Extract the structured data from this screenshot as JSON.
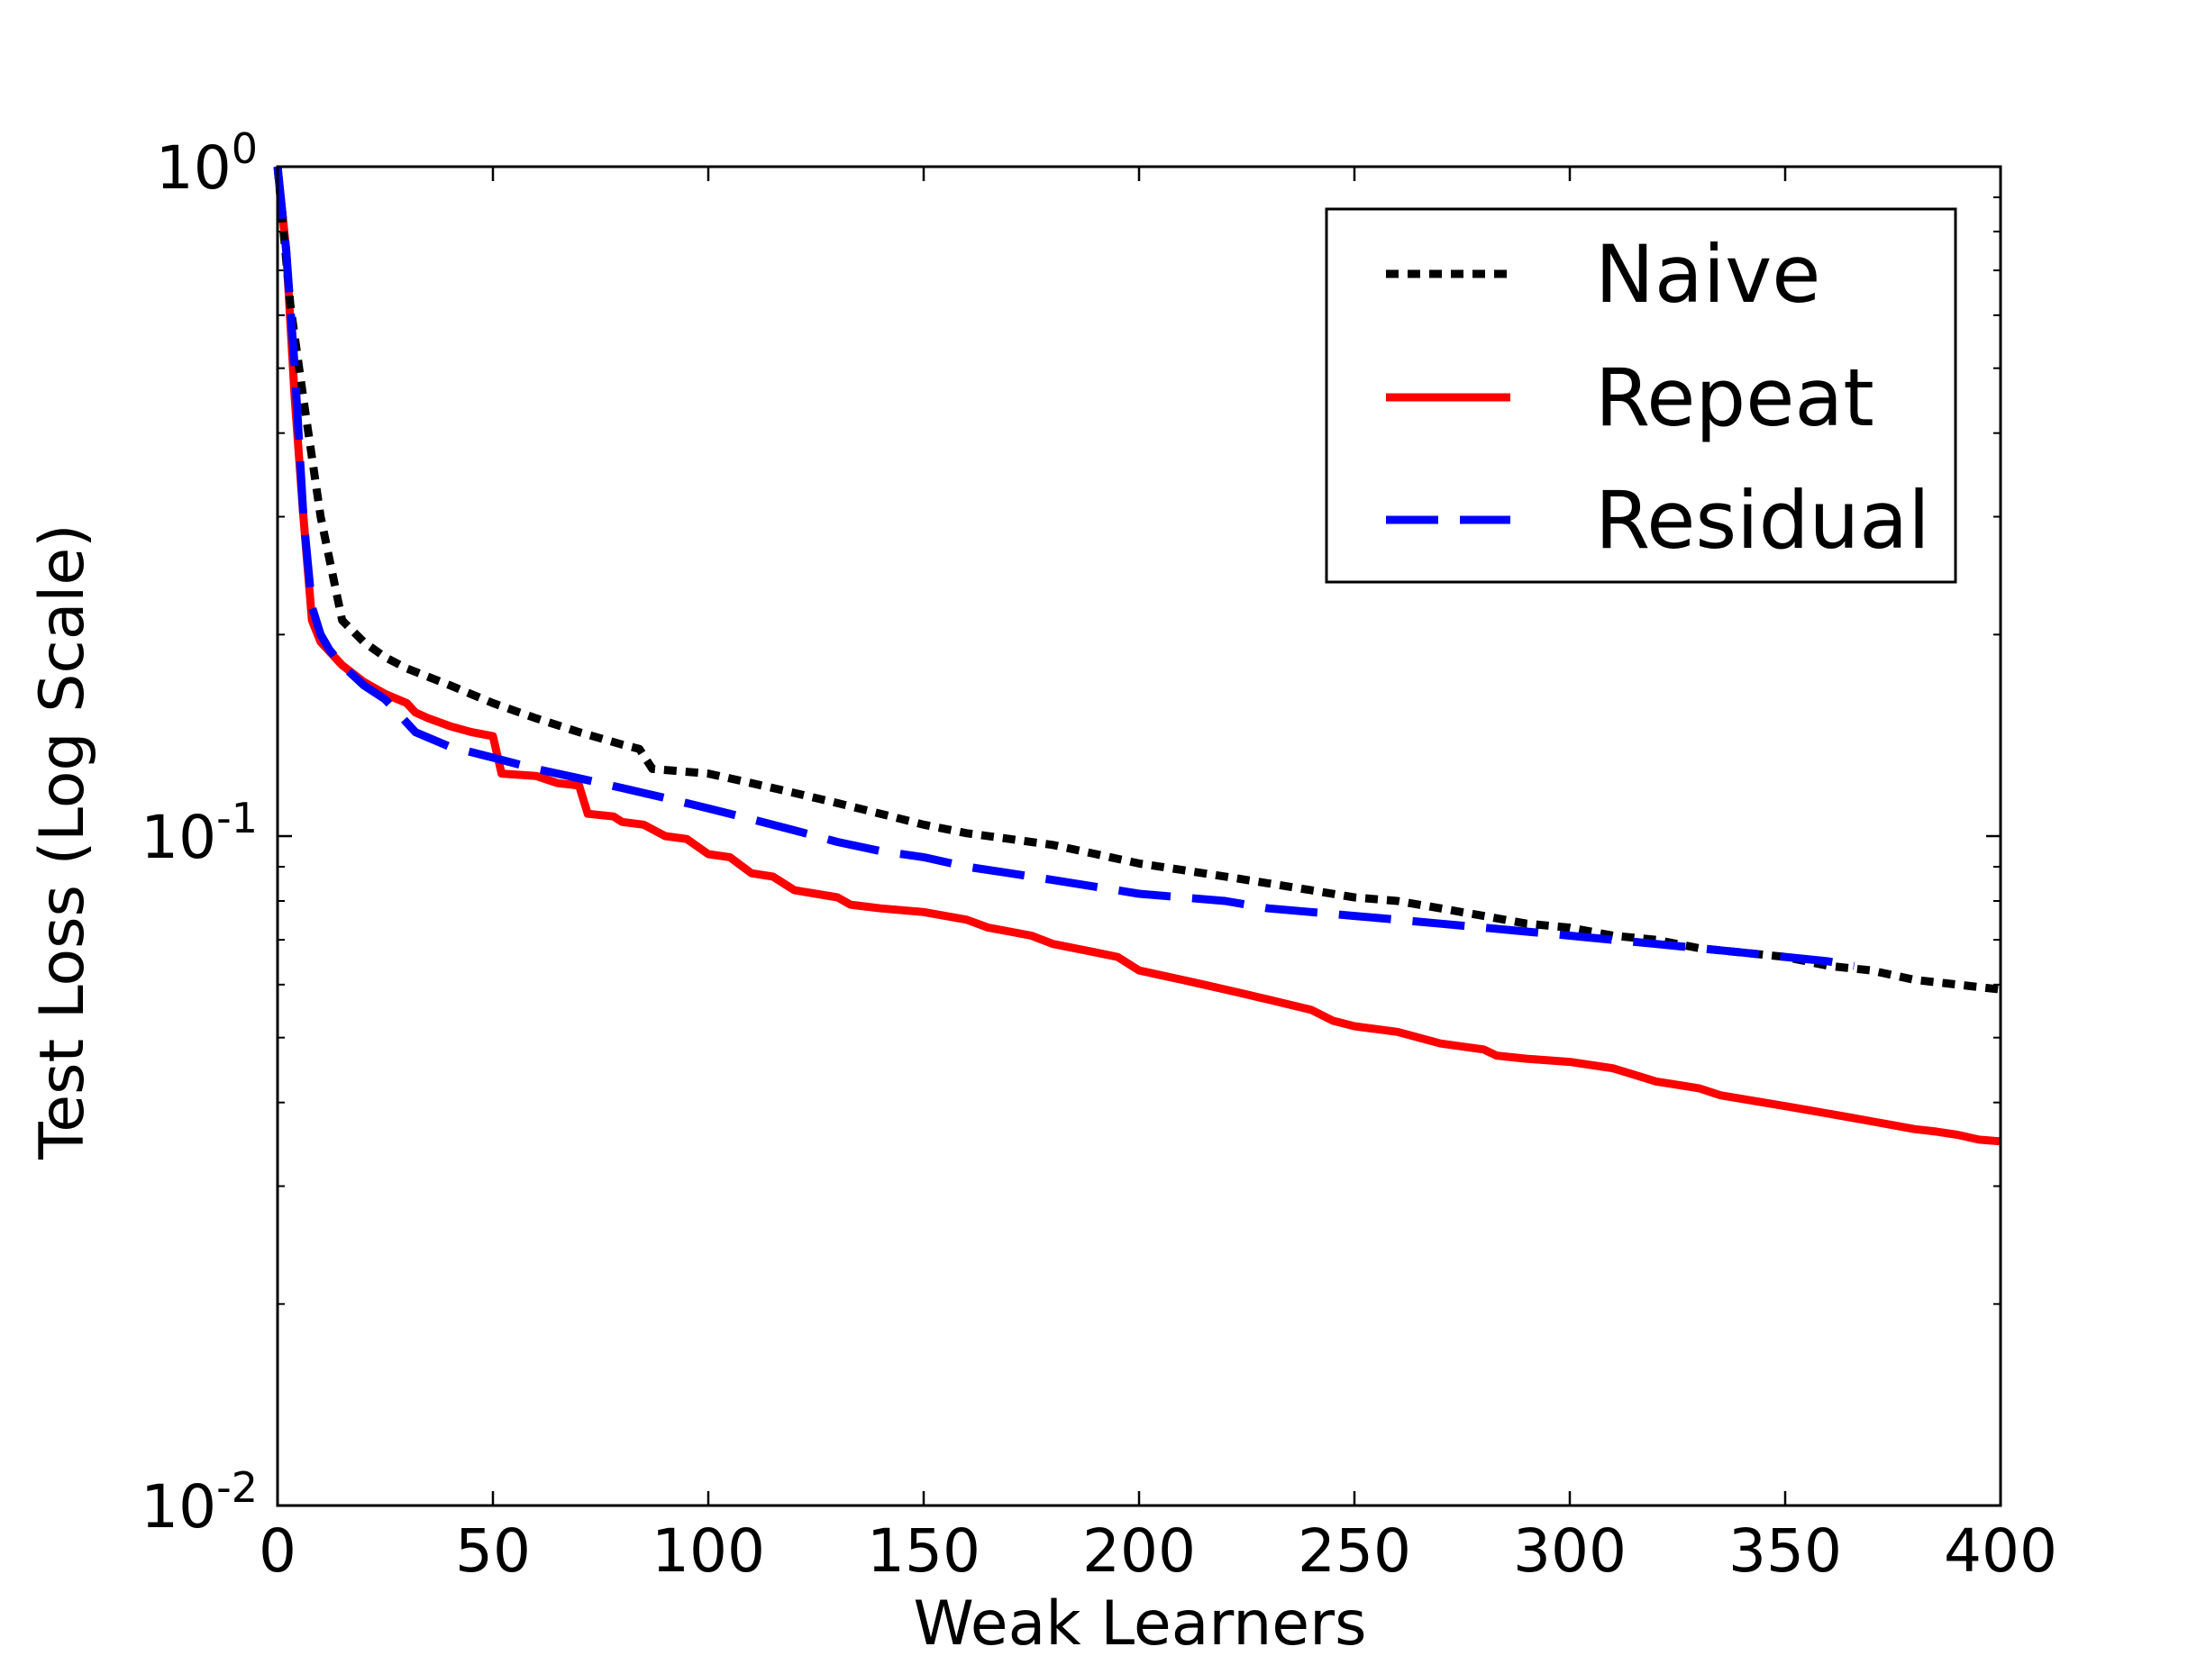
{
  "chart_data": {
    "type": "line",
    "title": "",
    "xlabel": "Weak Learners",
    "ylabel": "Test Loss (Log Scale)",
    "xlim": [
      0,
      400
    ],
    "ylim": [
      0.01,
      1
    ],
    "yscale": "log",
    "xticks": [
      0,
      50,
      100,
      150,
      200,
      250,
      300,
      350,
      400
    ],
    "xtick_labels": [
      "0",
      "50",
      "100",
      "150",
      "200",
      "250",
      "300",
      "350",
      "400"
    ],
    "yticks": [
      {
        "value": 1,
        "base": "10",
        "exp": "0"
      },
      {
        "value": 0.1,
        "base": "10",
        "exp": "-1"
      },
      {
        "value": 0.01,
        "base": "10",
        "exp": "-2"
      }
    ],
    "grid": false,
    "legend_position": "top-right",
    "series": [
      {
        "name": "Naive",
        "color": "#000000",
        "style": "dotted",
        "x": [
          0,
          3,
          6,
          10,
          15,
          20,
          25,
          30,
          40,
          50,
          60,
          70,
          80,
          84,
          87,
          100,
          110,
          120,
          130,
          140,
          150,
          160,
          170,
          180,
          190,
          200,
          210,
          220,
          230,
          240,
          250,
          260,
          270,
          280,
          290,
          300,
          310,
          320,
          330,
          340,
          350,
          360,
          370,
          380,
          390,
          400
        ],
        "y": [
          1.0,
          0.62,
          0.45,
          0.3,
          0.21,
          0.195,
          0.185,
          0.178,
          0.168,
          0.158,
          0.15,
          0.143,
          0.137,
          0.135,
          0.126,
          0.124,
          0.12,
          0.116,
          0.112,
          0.108,
          0.104,
          0.101,
          0.099,
          0.097,
          0.094,
          0.091,
          0.089,
          0.087,
          0.085,
          0.083,
          0.081,
          0.08,
          0.078,
          0.076,
          0.074,
          0.073,
          0.071,
          0.07,
          0.068,
          0.067,
          0.066,
          0.064,
          0.063,
          0.061,
          0.06,
          0.059
        ]
      },
      {
        "name": "Repeat",
        "color": "#ff0000",
        "style": "solid",
        "x": [
          0,
          2,
          4,
          6,
          8,
          10,
          15,
          20,
          25,
          30,
          32,
          35,
          40,
          45,
          50,
          52,
          60,
          65,
          70,
          72,
          78,
          80,
          85,
          90,
          95,
          100,
          105,
          110,
          115,
          120,
          125,
          130,
          133,
          140,
          150,
          160,
          165,
          170,
          175,
          180,
          185,
          190,
          195,
          200,
          205,
          210,
          215,
          220,
          225,
          230,
          235,
          240,
          245,
          250,
          260,
          270,
          280,
          283,
          290,
          300,
          310,
          315,
          320,
          325,
          330,
          335,
          340,
          345,
          350,
          355,
          360,
          365,
          370,
          375,
          380,
          385,
          390,
          395,
          400
        ],
        "y": [
          1.0,
          0.75,
          0.45,
          0.3,
          0.21,
          0.195,
          0.18,
          0.17,
          0.163,
          0.158,
          0.153,
          0.15,
          0.146,
          0.143,
          0.141,
          0.124,
          0.123,
          0.12,
          0.119,
          0.108,
          0.107,
          0.105,
          0.104,
          0.1,
          0.099,
          0.094,
          0.093,
          0.088,
          0.087,
          0.083,
          0.082,
          0.081,
          0.079,
          0.078,
          0.077,
          0.075,
          0.073,
          0.072,
          0.071,
          0.069,
          0.068,
          0.067,
          0.066,
          0.063,
          0.062,
          0.061,
          0.06,
          0.059,
          0.058,
          0.057,
          0.056,
          0.055,
          0.053,
          0.052,
          0.051,
          0.049,
          0.048,
          0.047,
          0.0465,
          0.046,
          0.045,
          0.044,
          0.043,
          0.0425,
          0.042,
          0.041,
          0.0405,
          0.04,
          0.0395,
          0.039,
          0.0385,
          0.038,
          0.0375,
          0.037,
          0.0365,
          0.0362,
          0.0358,
          0.0352,
          0.035
        ]
      },
      {
        "name": "Residual",
        "color": "#0000ff",
        "style": "dashed",
        "x": [
          0,
          2,
          4,
          6,
          8,
          10,
          12,
          15,
          20,
          25,
          32,
          40,
          50,
          60,
          70,
          80,
          90,
          100,
          110,
          120,
          130,
          140,
          150,
          160,
          170,
          180,
          190,
          200,
          210,
          220,
          230,
          240,
          250,
          260,
          270,
          280,
          290,
          300,
          310,
          320,
          330,
          340,
          350,
          360,
          366
        ],
        "y": [
          1.0,
          0.75,
          0.5,
          0.3,
          0.22,
          0.2,
          0.19,
          0.18,
          0.168,
          0.16,
          0.143,
          0.136,
          0.131,
          0.126,
          0.122,
          0.118,
          0.114,
          0.11,
          0.106,
          0.102,
          0.098,
          0.095,
          0.093,
          0.09,
          0.088,
          0.086,
          0.084,
          0.082,
          0.081,
          0.08,
          0.078,
          0.077,
          0.076,
          0.075,
          0.074,
          0.073,
          0.072,
          0.071,
          0.07,
          0.069,
          0.068,
          0.067,
          0.066,
          0.065,
          0.064
        ]
      }
    ]
  }
}
